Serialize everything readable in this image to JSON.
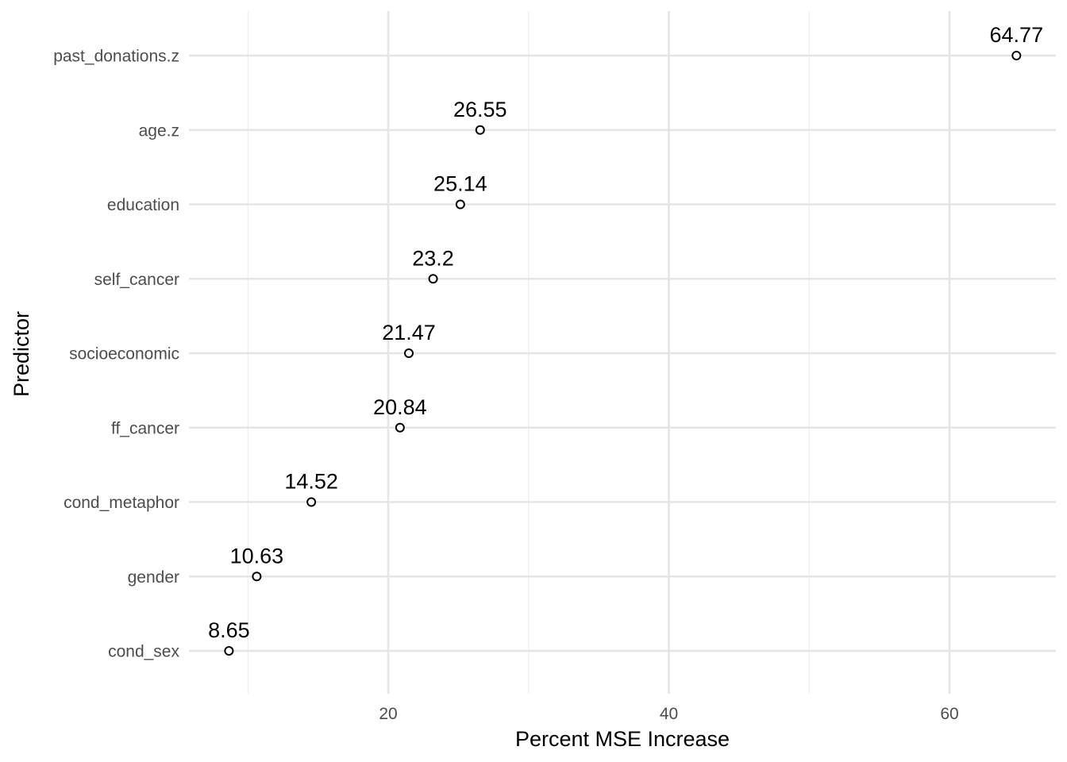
{
  "chart_data": {
    "type": "scatter",
    "xlabel": "Percent MSE Increase",
    "ylabel": "Predictor",
    "xlim": [
      5,
      67
    ],
    "x_ticks": [
      20,
      40,
      60
    ],
    "x_minor_ticks": [
      10,
      30,
      50
    ],
    "grid": true,
    "points": [
      {
        "predictor": "past_donations.z",
        "value": 64.77,
        "label": "64.77"
      },
      {
        "predictor": "age.z",
        "value": 26.55,
        "label": "26.55"
      },
      {
        "predictor": "education",
        "value": 25.14,
        "label": "25.14"
      },
      {
        "predictor": "self_cancer",
        "value": 23.2,
        "label": "23.2"
      },
      {
        "predictor": "socioeconomic",
        "value": 21.47,
        "label": "21.47"
      },
      {
        "predictor": "ff_cancer",
        "value": 20.84,
        "label": "20.84"
      },
      {
        "predictor": "cond_metaphor",
        "value": 14.52,
        "label": "14.52"
      },
      {
        "predictor": "gender",
        "value": 10.63,
        "label": "10.63"
      },
      {
        "predictor": "cond_sex",
        "value": 8.65,
        "label": "8.65"
      }
    ]
  }
}
